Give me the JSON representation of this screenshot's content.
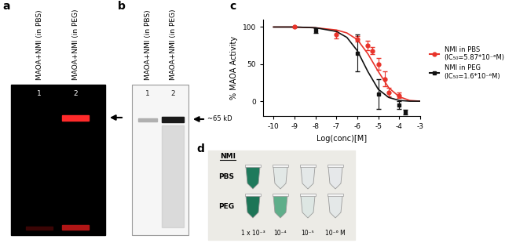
{
  "panel_labels": [
    "a",
    "b",
    "c",
    "d"
  ],
  "gel_a": {
    "lanes": [
      "MAOA+NMI (in PBS)",
      "MAOA+NMI (in PEG)"
    ],
    "lane_numbers": [
      "1",
      "2"
    ]
  },
  "gel_b": {
    "lanes": [
      "MAOA+NMI (in PBS)",
      "MAOA+NMI (in PEG)"
    ],
    "lane_numbers": [
      "1",
      "2"
    ],
    "band_label": "~65 kD"
  },
  "chart_data": {
    "type": "line",
    "x_label": "Log(conc)[M]",
    "y_label": "% MAOA Activity",
    "xlim": [
      -10.5,
      -3
    ],
    "xticks": [
      -10,
      -9,
      -8,
      -7,
      -6,
      -5,
      -4,
      -3
    ],
    "ylim": [
      -20,
      110
    ],
    "yticks": [
      0,
      50,
      100
    ],
    "legend": "center left",
    "series": [
      {
        "name": "NMI in PBS\n(IC₅₀=5.87*10⁻⁶M)",
        "color": "#e8332a",
        "marker": "circle",
        "line_style": "solid",
        "x": [
          -9,
          -7,
          -6,
          -5.52,
          -5.3,
          -5.0,
          -4.7,
          -4.5,
          -4
        ],
        "values": [
          100,
          90,
          84,
          75,
          68,
          50,
          30,
          12,
          8
        ],
        "errors": [
          1,
          5,
          4,
          6,
          5,
          8,
          10,
          6,
          4
        ],
        "fit": {
          "x": [
            -10,
            -9,
            -8,
            -7,
            -6.5,
            -6,
            -5.5,
            -5,
            -4.5,
            -4,
            -3.5,
            -3
          ],
          "values": [
            100,
            100,
            99,
            96,
            92,
            83,
            64,
            40,
            18,
            6,
            1,
            0
          ]
        }
      },
      {
        "name": "NMI in PEG\n(IC₅₀=1.6*10⁻⁶M)",
        "color": "#111111",
        "marker": "square",
        "line_style": "solid",
        "x": [
          -8,
          -6,
          -5,
          -4,
          -3.7
        ],
        "values": [
          95,
          65,
          10,
          -5,
          -15
        ],
        "errors": [
          3,
          25,
          20,
          5,
          3
        ],
        "fit": {
          "x": [
            -10,
            -9,
            -8,
            -7,
            -6.5,
            -6,
            -5.5,
            -5,
            -4.5,
            -4,
            -3.5,
            -3
          ],
          "values": [
            100,
            100,
            99,
            94,
            86,
            68,
            40,
            16,
            5,
            1,
            0,
            0
          ]
        }
      }
    ]
  },
  "tubes_d": {
    "title": "NMI",
    "rows": [
      {
        "label": "PBS",
        "colors": [
          "#1f7a5c",
          "#e2e8e6",
          "#e4e8e8",
          "#e6e8ea"
        ]
      },
      {
        "label": "PEG",
        "colors": [
          "#1d7557",
          "#5fae8a",
          "#dde6e3",
          "#e4e8e8"
        ]
      }
    ],
    "concentrations": [
      "1 x 10⁻³",
      "10⁻⁴",
      "10⁻⁵",
      "10⁻⁶ M"
    ]
  }
}
